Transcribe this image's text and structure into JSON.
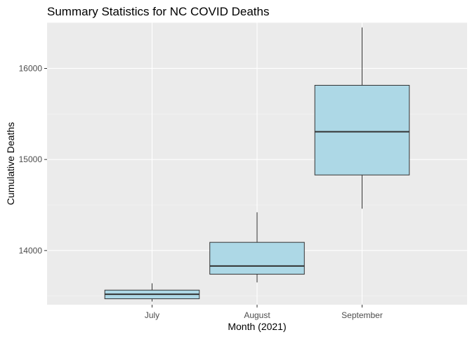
{
  "chart_data": {
    "type": "boxplot",
    "title": "Summary Statistics for NC COVID Deaths",
    "xlabel": "Month (2021)",
    "ylabel": "Cumulative Deaths",
    "categories": [
      "July",
      "August",
      "September"
    ],
    "boxes": [
      {
        "category": "July",
        "min": 13440,
        "q1": 13470,
        "median": 13520,
        "q3": 13565,
        "max": 13640
      },
      {
        "category": "August",
        "min": 13650,
        "q1": 13740,
        "median": 13830,
        "q3": 14090,
        "max": 14420
      },
      {
        "category": "September",
        "min": 14460,
        "q1": 14830,
        "median": 15305,
        "q3": 15815,
        "max": 16450
      }
    ],
    "y_ticks": [
      14000,
      15000,
      16000
    ],
    "ylim": [
      13405,
      16505
    ],
    "grid": true,
    "colors": {
      "box_fill": "#add8e6",
      "box_stroke": "#333333",
      "panel_background": "#ebebeb",
      "grid_major": "#ffffff",
      "grid_minor": "#f6f6f6"
    }
  }
}
